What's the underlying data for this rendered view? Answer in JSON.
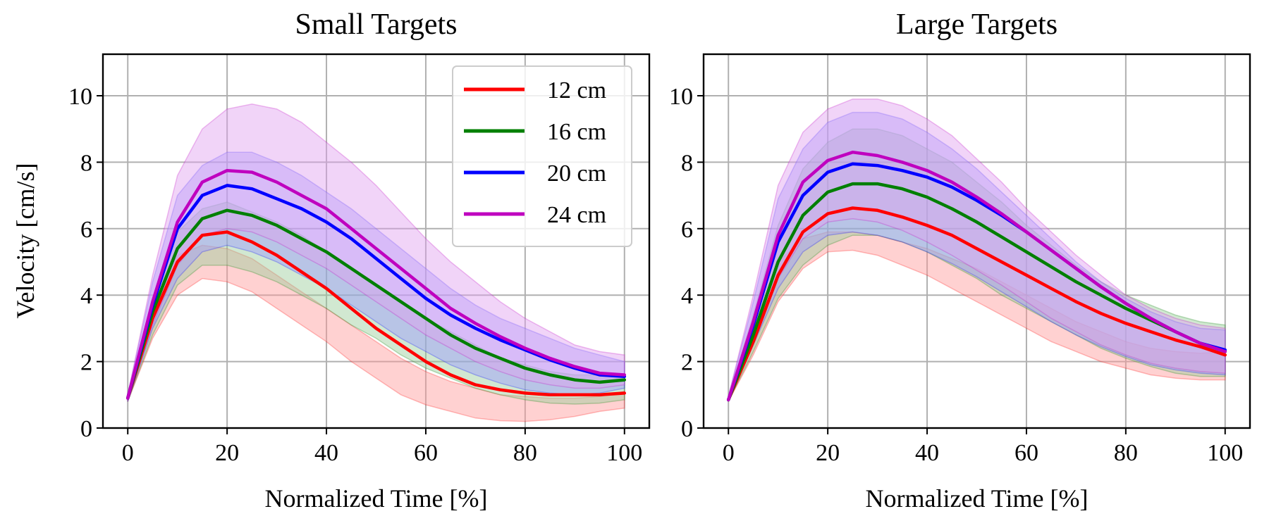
{
  "figure": {
    "ylabel": "Velocity [cm/s]"
  },
  "chart_data": [
    {
      "type": "line",
      "title": "Small Targets",
      "xlabel": "Normalized Time [%]",
      "ylabel": "Velocity [cm/s]",
      "xlim": [
        -5,
        105
      ],
      "ylim": [
        0,
        11.25
      ],
      "xticks": [
        0,
        20,
        40,
        60,
        80,
        100
      ],
      "yticks": [
        0,
        2,
        4,
        6,
        8,
        10
      ],
      "grid": true,
      "legend": "top-right",
      "x": [
        0,
        5,
        10,
        15,
        20,
        25,
        30,
        35,
        40,
        45,
        50,
        55,
        60,
        65,
        70,
        75,
        80,
        85,
        90,
        95,
        100
      ],
      "series": [
        {
          "name": "12 cm",
          "color": "#ff0000",
          "fill": "#ff9999",
          "values": [
            0.9,
            3.3,
            5.0,
            5.8,
            5.9,
            5.6,
            5.2,
            4.7,
            4.2,
            3.6,
            3.0,
            2.5,
            2.0,
            1.6,
            1.3,
            1.15,
            1.05,
            1.0,
            1.0,
            1.0,
            1.05
          ],
          "lower": [
            0.8,
            2.7,
            4.0,
            4.5,
            4.4,
            4.1,
            3.6,
            3.1,
            2.6,
            2.0,
            1.5,
            1.0,
            0.7,
            0.5,
            0.3,
            0.22,
            0.2,
            0.25,
            0.35,
            0.5,
            0.6
          ],
          "upper": [
            1.0,
            3.7,
            5.2,
            5.5,
            5.4,
            5.1,
            4.6,
            4.1,
            3.6,
            3.1,
            2.6,
            2.1,
            1.7,
            1.4,
            1.2,
            1.0,
            0.95,
            0.9,
            0.9,
            0.95,
            1.1
          ]
        },
        {
          "name": "16 cm",
          "color": "#007f00",
          "fill": "#99cc99",
          "values": [
            0.9,
            3.5,
            5.4,
            6.3,
            6.55,
            6.4,
            6.1,
            5.7,
            5.3,
            4.8,
            4.3,
            3.8,
            3.3,
            2.8,
            2.4,
            2.1,
            1.8,
            1.6,
            1.45,
            1.38,
            1.45
          ],
          "lower": [
            0.8,
            2.8,
            4.3,
            4.9,
            4.9,
            4.7,
            4.4,
            4.0,
            3.6,
            3.1,
            2.7,
            2.2,
            1.8,
            1.5,
            1.2,
            1.0,
            0.85,
            0.75,
            0.72,
            0.75,
            0.85
          ],
          "upper": [
            1.0,
            3.9,
            5.9,
            6.6,
            6.8,
            6.5,
            6.2,
            5.8,
            5.3,
            4.8,
            4.3,
            3.8,
            3.3,
            2.9,
            2.5,
            2.1,
            1.9,
            1.7,
            1.6,
            1.6,
            1.6
          ]
        },
        {
          "name": "20 cm",
          "color": "#0000ff",
          "fill": "#9999ff",
          "values": [
            0.9,
            3.7,
            6.0,
            7.0,
            7.3,
            7.2,
            6.9,
            6.6,
            6.2,
            5.7,
            5.1,
            4.5,
            3.9,
            3.4,
            3.0,
            2.65,
            2.35,
            2.05,
            1.8,
            1.6,
            1.55
          ],
          "lower": [
            0.8,
            3.0,
            4.5,
            5.3,
            5.5,
            5.3,
            5.0,
            4.6,
            4.2,
            3.7,
            3.2,
            2.7,
            2.3,
            1.9,
            1.6,
            1.35,
            1.15,
            1.05,
            1.0,
            1.05,
            1.2
          ],
          "upper": [
            1.0,
            4.4,
            7.0,
            7.9,
            8.3,
            8.3,
            8.0,
            7.6,
            7.1,
            6.6,
            6.0,
            5.4,
            4.8,
            4.2,
            3.7,
            3.3,
            3.0,
            2.7,
            2.4,
            2.2,
            2.0
          ]
        },
        {
          "name": "24 cm",
          "color": "#bf00bf",
          "fill": "#e0a0f0",
          "values": [
            0.9,
            3.8,
            6.2,
            7.4,
            7.75,
            7.7,
            7.4,
            7.0,
            6.6,
            6.0,
            5.4,
            4.8,
            4.2,
            3.6,
            3.15,
            2.75,
            2.4,
            2.1,
            1.85,
            1.65,
            1.6
          ],
          "lower": [
            0.8,
            3.1,
            4.9,
            5.8,
            6.0,
            5.9,
            5.6,
            5.2,
            4.8,
            4.3,
            3.8,
            3.3,
            2.8,
            2.4,
            2.0,
            1.7,
            1.45,
            1.3,
            1.2,
            1.2,
            1.3
          ],
          "upper": [
            1.0,
            4.6,
            7.6,
            9.0,
            9.6,
            9.75,
            9.6,
            9.2,
            8.6,
            8.0,
            7.3,
            6.5,
            5.7,
            5.0,
            4.4,
            3.8,
            3.3,
            2.9,
            2.5,
            2.3,
            2.2
          ]
        }
      ]
    },
    {
      "type": "line",
      "title": "Large Targets",
      "xlabel": "Normalized Time [%]",
      "ylabel": "",
      "xlim": [
        -5,
        105
      ],
      "ylim": [
        0,
        11.25
      ],
      "xticks": [
        0,
        20,
        40,
        60,
        80,
        100
      ],
      "yticks": [
        0,
        2,
        4,
        6,
        8,
        10
      ],
      "grid": true,
      "legend": "",
      "x": [
        0,
        5,
        10,
        15,
        20,
        25,
        30,
        35,
        40,
        45,
        50,
        55,
        60,
        65,
        70,
        75,
        80,
        85,
        90,
        95,
        100
      ],
      "series": [
        {
          "name": "12 cm",
          "color": "#ff0000",
          "fill": "#ff9999",
          "values": [
            0.85,
            2.6,
            4.6,
            5.9,
            6.45,
            6.62,
            6.55,
            6.35,
            6.1,
            5.8,
            5.4,
            5.0,
            4.6,
            4.2,
            3.8,
            3.45,
            3.15,
            2.9,
            2.65,
            2.45,
            2.2
          ],
          "lower": [
            0.8,
            2.2,
            3.8,
            4.8,
            5.3,
            5.35,
            5.2,
            4.9,
            4.6,
            4.2,
            3.8,
            3.4,
            3.0,
            2.6,
            2.3,
            2.0,
            1.8,
            1.6,
            1.5,
            1.45,
            1.45
          ],
          "upper": [
            0.9,
            3.0,
            5.0,
            5.7,
            5.9,
            5.9,
            5.8,
            5.6,
            5.4,
            5.1,
            4.8,
            4.4,
            4.0,
            3.6,
            3.2,
            2.9,
            2.6,
            2.4,
            2.3,
            2.25,
            2.3
          ]
        },
        {
          "name": "16 cm",
          "color": "#007f00",
          "fill": "#99cc99",
          "values": [
            0.85,
            2.8,
            5.0,
            6.4,
            7.1,
            7.35,
            7.35,
            7.2,
            6.95,
            6.6,
            6.2,
            5.75,
            5.3,
            4.85,
            4.4,
            4.0,
            3.6,
            3.25,
            2.9,
            2.55,
            2.3
          ],
          "lower": [
            0.8,
            2.3,
            3.9,
            4.9,
            5.5,
            5.8,
            5.8,
            5.6,
            5.3,
            4.9,
            4.5,
            4.0,
            3.6,
            3.2,
            2.8,
            2.4,
            2.1,
            1.85,
            1.65,
            1.55,
            1.55
          ],
          "upper": [
            0.95,
            3.4,
            6.1,
            7.8,
            8.6,
            9.0,
            9.0,
            8.8,
            8.4,
            8.0,
            7.4,
            6.8,
            6.1,
            5.5,
            4.9,
            4.4,
            4.0,
            3.7,
            3.4,
            3.2,
            3.1
          ]
        },
        {
          "name": "20 cm",
          "color": "#0000ff",
          "fill": "#9999ff",
          "values": [
            0.85,
            3.1,
            5.6,
            7.0,
            7.7,
            7.95,
            7.9,
            7.75,
            7.55,
            7.25,
            6.85,
            6.4,
            5.9,
            5.35,
            4.8,
            4.25,
            3.75,
            3.3,
            2.9,
            2.55,
            2.35
          ],
          "lower": [
            0.8,
            2.5,
            4.2,
            5.3,
            5.8,
            5.9,
            5.8,
            5.6,
            5.3,
            4.95,
            4.55,
            4.1,
            3.65,
            3.2,
            2.8,
            2.45,
            2.15,
            1.9,
            1.75,
            1.65,
            1.6
          ],
          "upper": [
            0.95,
            3.8,
            6.9,
            8.4,
            9.2,
            9.5,
            9.5,
            9.3,
            8.9,
            8.4,
            7.8,
            7.1,
            6.4,
            5.7,
            5.0,
            4.4,
            3.9,
            3.5,
            3.2,
            3.0,
            2.95
          ]
        },
        {
          "name": "24 cm",
          "color": "#bf00bf",
          "fill": "#e0a0f0",
          "values": [
            0.85,
            3.2,
            5.8,
            7.4,
            8.05,
            8.3,
            8.2,
            8.0,
            7.75,
            7.4,
            6.95,
            6.45,
            5.9,
            5.35,
            4.8,
            4.25,
            3.75,
            3.3,
            2.9,
            2.55,
            2.3
          ],
          "lower": [
            0.8,
            2.6,
            4.5,
            5.7,
            6.2,
            6.3,
            6.2,
            5.95,
            5.6,
            5.2,
            4.75,
            4.3,
            3.8,
            3.3,
            2.9,
            2.5,
            2.2,
            1.95,
            1.8,
            1.7,
            1.65
          ],
          "upper": [
            0.95,
            4.0,
            7.3,
            8.9,
            9.6,
            9.9,
            9.9,
            9.7,
            9.3,
            8.8,
            8.1,
            7.4,
            6.6,
            5.9,
            5.2,
            4.6,
            4.0,
            3.6,
            3.3,
            3.1,
            3.0
          ]
        }
      ]
    }
  ]
}
